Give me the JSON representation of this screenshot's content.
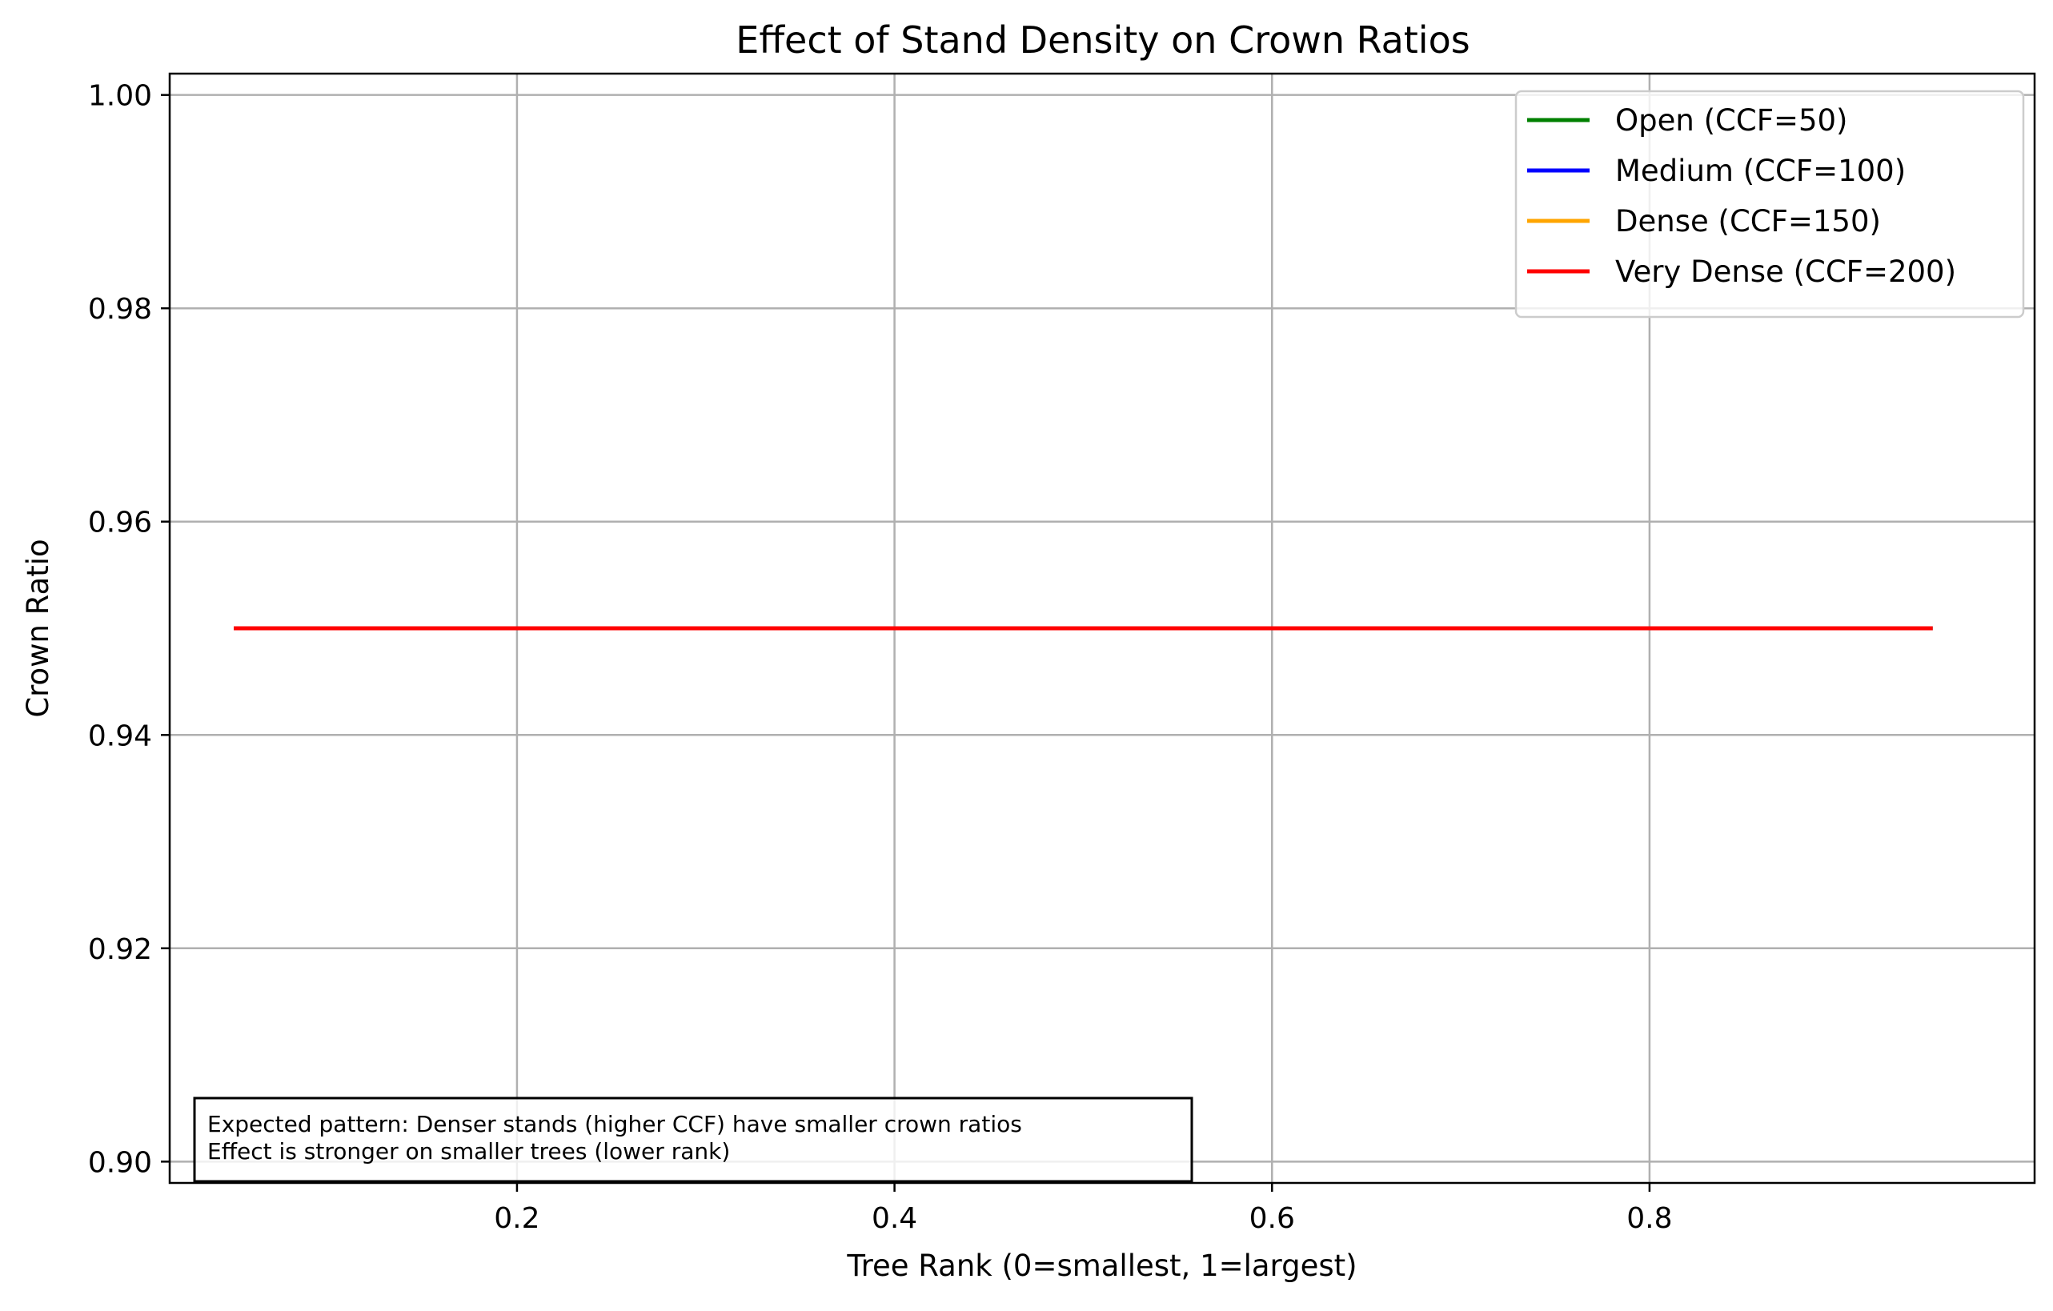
{
  "chart_data": {
    "type": "line",
    "title": "Effect of Stand Density on Crown Ratios",
    "xlabel": "Tree Rank (0=smallest, 1=largest)",
    "ylabel": "Crown Ratio",
    "xlim": [
      0.016,
      1.004
    ],
    "ylim": [
      0.898,
      1.002
    ],
    "xticks": [
      0.2,
      0.4,
      0.6,
      0.8
    ],
    "xtick_labels": [
      "0.2",
      "0.4",
      "0.6",
      "0.8"
    ],
    "yticks": [
      0.9,
      0.92,
      0.94,
      0.96,
      0.98,
      1.0
    ],
    "ytick_labels": [
      "0.90",
      "0.92",
      "0.94",
      "0.96",
      "0.98",
      "1.00"
    ],
    "grid": true,
    "legend_position": "top-right",
    "series": [
      {
        "name": "Open (CCF=50)",
        "color": "#008000",
        "x": [
          0.05,
          0.95
        ],
        "y": [
          0.95,
          0.95
        ]
      },
      {
        "name": "Medium (CCF=100)",
        "color": "#0000ff",
        "x": [
          0.05,
          0.95
        ],
        "y": [
          0.95,
          0.95
        ]
      },
      {
        "name": "Dense (CCF=150)",
        "color": "#ffa500",
        "x": [
          0.05,
          0.95
        ],
        "y": [
          0.95,
          0.95
        ]
      },
      {
        "name": "Very Dense (CCF=200)",
        "color": "#ff0000",
        "x": [
          0.05,
          0.95
        ],
        "y": [
          0.95,
          0.95
        ]
      }
    ],
    "annotation": {
      "lines": [
        "Expected pattern: Denser stands (higher CCF) have smaller crown ratios",
        "Effect is stronger on smaller trees (lower rank)"
      ],
      "position": "bottom-left"
    }
  }
}
